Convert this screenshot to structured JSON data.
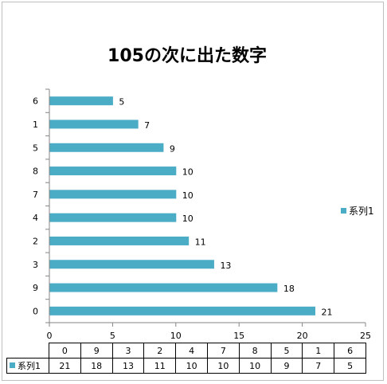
{
  "chart_data": {
    "type": "bar",
    "orientation": "horizontal",
    "title": "105の次に出た数字",
    "categories": [
      "0",
      "9",
      "3",
      "2",
      "4",
      "7",
      "8",
      "5",
      "1",
      "6"
    ],
    "series": [
      {
        "name": "系列1",
        "values": [
          21,
          18,
          13,
          11,
          10,
          10,
          10,
          9,
          7,
          5
        ]
      }
    ],
    "xlim": [
      0,
      25
    ],
    "xticks": [
      0,
      5,
      10,
      15,
      20,
      25
    ],
    "grid": false,
    "data_labels": true,
    "legend": {
      "position": "right",
      "entries": [
        "系列1"
      ]
    },
    "data_table": true,
    "bar_color": "#4bacc6"
  }
}
